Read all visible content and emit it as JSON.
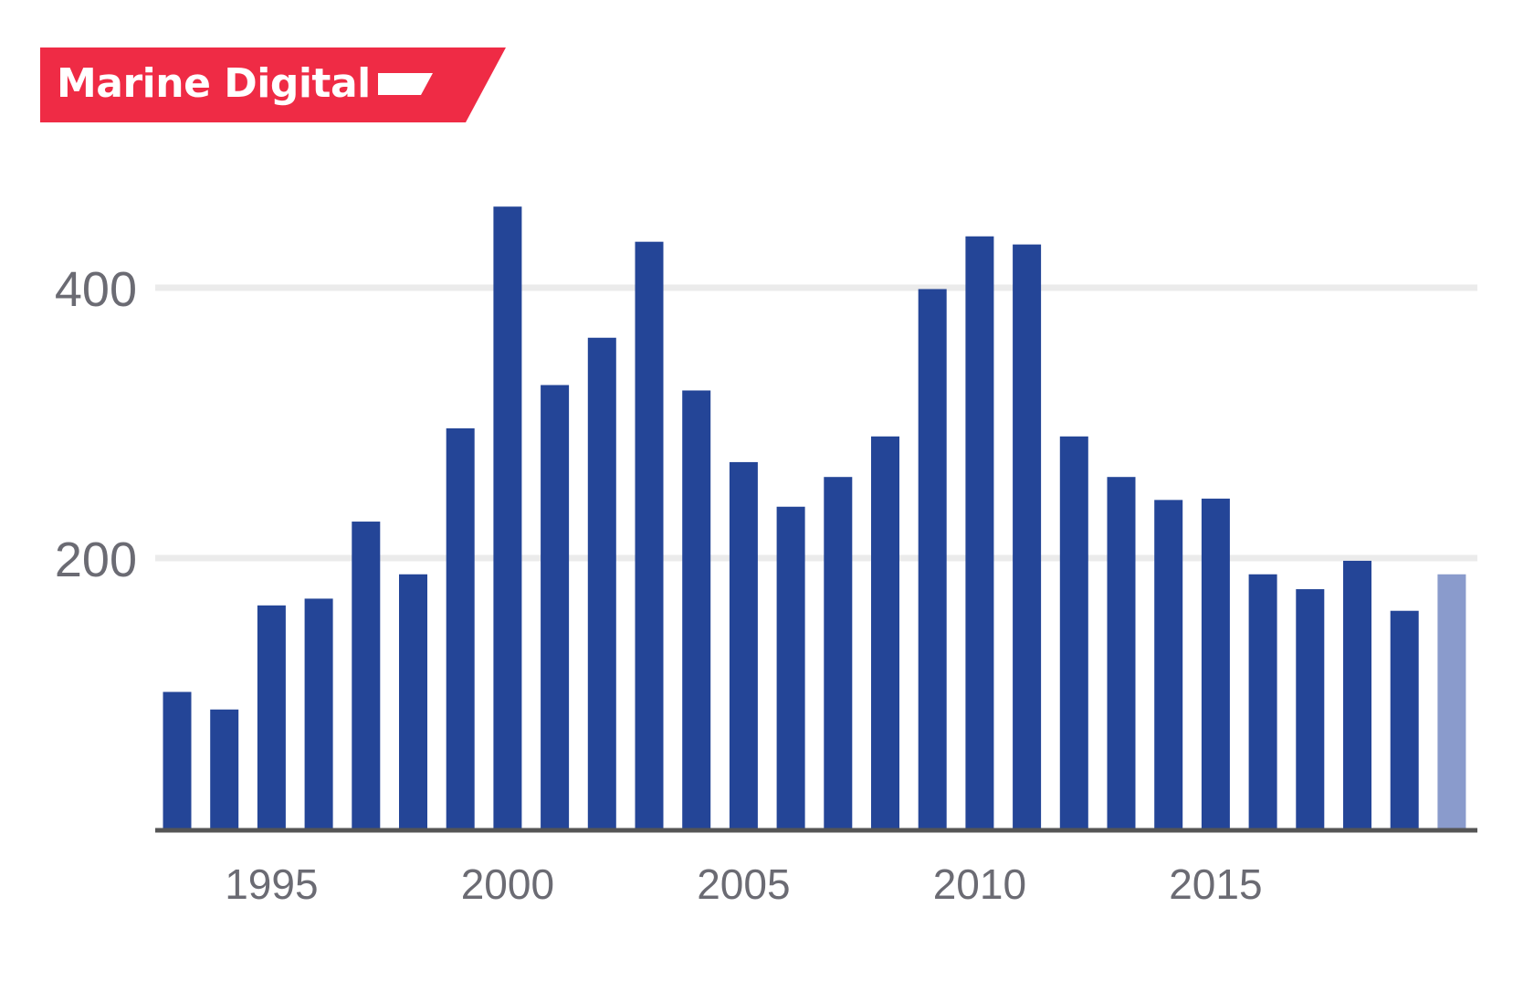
{
  "brand": {
    "name": "Marine Digital",
    "color": "#ef2b45"
  },
  "chart_data": {
    "type": "bar",
    "title": "",
    "xlabel": "",
    "ylabel": "",
    "x": [
      1993,
      1994,
      1995,
      1996,
      1997,
      1998,
      1999,
      2000,
      2001,
      2002,
      2003,
      2004,
      2005,
      2006,
      2007,
      2008,
      2009,
      2010,
      2011,
      2012,
      2013,
      2014,
      2015,
      2016,
      2017,
      2018,
      2019,
      2020
    ],
    "values": [
      101,
      88,
      165,
      170,
      227,
      188,
      296,
      460,
      328,
      363,
      434,
      324,
      271,
      238,
      260,
      290,
      399,
      438,
      432,
      290,
      260,
      243,
      244,
      188,
      177,
      198,
      161,
      188
    ],
    "highlight_last": true,
    "ylim": [
      0,
      475
    ],
    "yticks": [
      200,
      400
    ],
    "xticks": [
      1995,
      2000,
      2005,
      2010,
      2015
    ],
    "grid": true,
    "colors": {
      "bar": "#244597",
      "bar_highlight": "#8a9bcc",
      "grid": "#ebebeb",
      "baseline": "#555555",
      "tick_text": "#6b6b73"
    }
  }
}
